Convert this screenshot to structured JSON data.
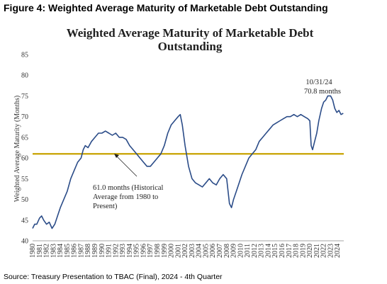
{
  "figure_title": "Figure 4: Weighted Average Maturity of Marketable Debt Outstanding",
  "source_note": "Source: Treasury Presentation to TBAC (Final), 2024 - 4th Quarter",
  "chart_data": {
    "type": "line",
    "title_line1": "Weighted Average Maturity of Marketable Debt",
    "title_line2": "Outstanding",
    "ylabel": "Weighted Average Maturity (Months)",
    "ylim": [
      40,
      85
    ],
    "yticks": [
      40,
      45,
      50,
      55,
      60,
      65,
      70,
      75,
      80,
      85
    ],
    "xlim": [
      1980,
      2024.9
    ],
    "xticks": [
      "1980",
      "1981",
      "1982",
      "1983",
      "1984",
      "1985",
      "1986",
      "1987",
      "1988",
      "1989",
      "1990",
      "1991",
      "1992",
      "1993",
      "1994",
      "1995",
      "1996",
      "1997",
      "1998",
      "1999",
      "2000",
      "2001",
      "2002",
      "2003",
      "2004",
      "2005",
      "2006",
      "2007",
      "2008",
      "2009",
      "2010",
      "2011",
      "2012",
      "2013",
      "2014",
      "2015",
      "2016",
      "2017",
      "2018",
      "2019",
      "2020",
      "2021",
      "2022",
      "2023",
      "2024"
    ],
    "series": [
      {
        "color": "#2b4c88",
        "x": [
          1980.0,
          1980.3,
          1980.6,
          1981.0,
          1981.3,
          1981.6,
          1982.0,
          1982.4,
          1982.8,
          1983.2,
          1983.6,
          1984.0,
          1984.5,
          1985.0,
          1985.5,
          1986.0,
          1986.5,
          1987.0,
          1987.3,
          1987.6,
          1988.0,
          1988.5,
          1989.0,
          1989.5,
          1990.0,
          1990.5,
          1991.0,
          1991.5,
          1992.0,
          1992.5,
          1993.0,
          1993.5,
          1994.0,
          1994.5,
          1995.0,
          1995.5,
          1996.0,
          1996.5,
          1997.0,
          1997.5,
          1998.0,
          1998.5,
          1999.0,
          1999.5,
          2000.0,
          2000.5,
          2001.0,
          2001.3,
          2001.6,
          2002.0,
          2002.5,
          2003.0,
          2003.5,
          2004.0,
          2004.5,
          2005.0,
          2005.5,
          2006.0,
          2006.5,
          2007.0,
          2007.5,
          2008.0,
          2008.4,
          2008.7,
          2009.0,
          2009.4,
          2009.8,
          2010.2,
          2010.7,
          2011.2,
          2011.7,
          2012.2,
          2012.7,
          2013.2,
          2013.7,
          2014.2,
          2014.7,
          2015.2,
          2015.7,
          2016.2,
          2016.7,
          2017.2,
          2017.7,
          2018.2,
          2018.7,
          2019.2,
          2019.7,
          2020.0,
          2020.2,
          2020.4,
          2020.7,
          2021.0,
          2021.3,
          2021.7,
          2022.0,
          2022.3,
          2022.6,
          2023.0,
          2023.3,
          2023.6,
          2023.9,
          2024.2,
          2024.5,
          2024.83
        ],
        "y": [
          43,
          44,
          44,
          45.5,
          46,
          45,
          44,
          44.5,
          43,
          44,
          46,
          48,
          50,
          52,
          55,
          57,
          59,
          60,
          62,
          63,
          62.5,
          64,
          65,
          66,
          66,
          66.5,
          66,
          65.5,
          66,
          65,
          65,
          64.5,
          63,
          62,
          61,
          60,
          59,
          58,
          58,
          59,
          60,
          61,
          63,
          66,
          68,
          69,
          70,
          70.5,
          68,
          63,
          58,
          55,
          54,
          53.5,
          53,
          54,
          55,
          54,
          53.5,
          55,
          56,
          55,
          49,
          48,
          50,
          52,
          54,
          56,
          58,
          60,
          61,
          62,
          64,
          65,
          66,
          67,
          68,
          68.5,
          69,
          69.5,
          70,
          70,
          70.5,
          70,
          70.5,
          70,
          69.5,
          69,
          63,
          62,
          64,
          66,
          69,
          72,
          73.5,
          74,
          75,
          75,
          74,
          72,
          71,
          71.5,
          70.5,
          70.8
        ]
      }
    ],
    "reference_line": {
      "value": 61.0,
      "color": "#c8a200"
    },
    "annotations": {
      "avg_line1": "61.0 months (Historical",
      "avg_line2": "Average from 1980 to",
      "avg_line3": "Present)",
      "latest_date": "10/31/24",
      "latest_value": "70.8 months"
    },
    "grid": false,
    "legend": "none"
  }
}
